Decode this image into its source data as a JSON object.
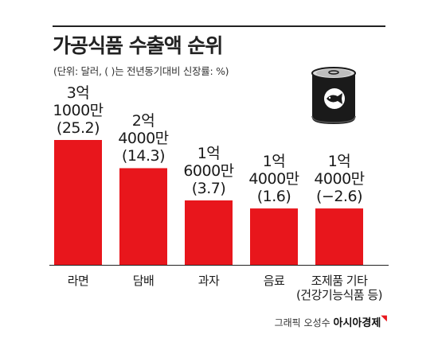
{
  "title": "가공식품 수출액 순위",
  "subtitle": "(단위: 달러, ( )는 전년동기대비 신장률: %)",
  "credit": {
    "text": "그래픽 오성수",
    "brand": "아시아경제"
  },
  "icon": "canned-food-icon",
  "colors": {
    "bar": "#e8161c",
    "baseline": "#222222"
  },
  "chart_data": {
    "type": "bar",
    "categories": [
      "라면",
      "담배",
      "과자",
      "음료",
      "조제품 기타 (건강기능식품 등)"
    ],
    "category_lines": [
      [
        "라면"
      ],
      [
        "담배"
      ],
      [
        "과자"
      ],
      [
        "음료"
      ],
      [
        "조제품 기타",
        "(건강기능식품 등)"
      ]
    ],
    "values": [
      310000000,
      240000000,
      160000000,
      140000000,
      140000000
    ],
    "value_labels": [
      [
        "3억",
        "1000만",
        "(25.2)"
      ],
      [
        "2억",
        "4000만",
        "(14.3)"
      ],
      [
        "1억",
        "6000만",
        "(3.7)"
      ],
      [
        "1억",
        "4000만",
        "(1.6)"
      ],
      [
        "1억",
        "4000만",
        "(−2.6)"
      ]
    ],
    "growth": [
      25.2,
      14.3,
      3.7,
      1.6,
      -2.6
    ],
    "title": "가공식품 수출액 순위",
    "ylim": [
      0,
      310000000
    ]
  }
}
